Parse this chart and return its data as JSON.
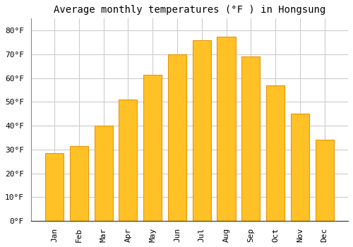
{
  "title": "Average monthly temperatures (°F ) in Hongsung",
  "months": [
    "Jan",
    "Feb",
    "Mar",
    "Apr",
    "May",
    "Jun",
    "Jul",
    "Aug",
    "Sep",
    "Oct",
    "Nov",
    "Dec"
  ],
  "values": [
    28.5,
    31.5,
    40.0,
    51.0,
    61.5,
    70.0,
    76.0,
    77.5,
    69.0,
    57.0,
    45.0,
    34.0
  ],
  "bar_color": "#FFC125",
  "bar_edge_color": "#E8960A",
  "background_color": "#FFFFFF",
  "plot_bg_color": "#FFFFFF",
  "grid_color": "#CCCCCC",
  "ylim": [
    0,
    85
  ],
  "yticks": [
    0,
    10,
    20,
    30,
    40,
    50,
    60,
    70,
    80
  ],
  "ylabel_format": "°F",
  "title_fontsize": 10,
  "tick_fontsize": 8,
  "font_family": "monospace"
}
